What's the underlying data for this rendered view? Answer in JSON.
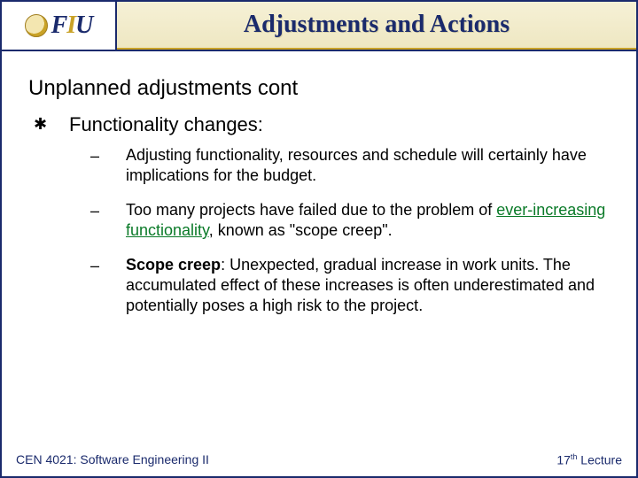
{
  "colors": {
    "navy": "#1a2a6c",
    "gold": "#c9a227",
    "green": "#0a7a28",
    "title_bg_top": "#f6f1d6",
    "title_bg_bottom": "#eee7c2",
    "page_bg": "#ffffff"
  },
  "typography": {
    "title_fontsize": 28,
    "heading_fontsize": 24,
    "topic_fontsize": 22,
    "sub_fontsize": 18,
    "footer_fontsize": 14,
    "title_family": "Georgia serif",
    "body_family": "Arial sans-serif"
  },
  "logo": {
    "text_f": "F",
    "text_i": "I",
    "text_u": "U"
  },
  "title": "Adjustments and Actions",
  "heading": "Unplanned adjustments cont",
  "topic": {
    "bullet_glyph": "✱",
    "label": "Functionality changes:"
  },
  "subs": [
    {
      "dash": "–",
      "plain": "Adjusting functionality, resources and schedule will certainly have implications for the budget."
    },
    {
      "dash": "–",
      "pre": "Too many projects have failed due to the problem of ",
      "green_underline": "ever-increasing functionality",
      "post": ", known as \"scope creep\"."
    },
    {
      "dash": "–",
      "bold_lead": "Scope creep",
      "rest": ": Unexpected, gradual increase in work units. The accumulated effect of these increases is often underestimated and potentially poses a high risk to the project."
    }
  ],
  "footer": {
    "left": "CEN 4021: Software Engineering II",
    "right_num": "17",
    "right_sup": "th",
    "right_tail": " Lecture"
  }
}
